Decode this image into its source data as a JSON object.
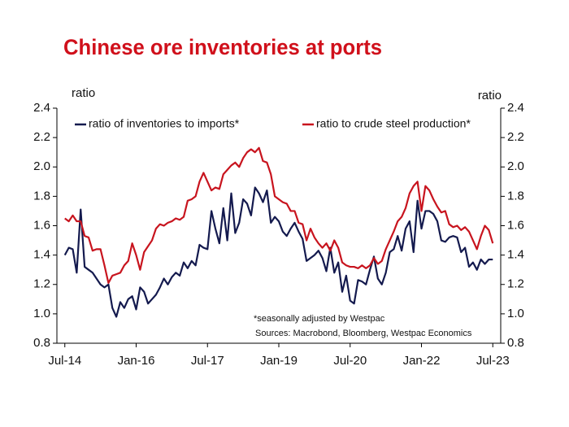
{
  "chart_data": {
    "type": "line",
    "title": "Chinese ore inventories at ports",
    "y_label": "ratio",
    "y2_label": "ratio",
    "annotations": [
      "*seasonally adjusted by Westpac",
      "Sources: Macrobond, Bloomberg, Westpac Economics"
    ],
    "legend": "top",
    "grid": false,
    "x": [
      "2014-07",
      "2014-08",
      "2014-09",
      "2014-10",
      "2014-11",
      "2014-12",
      "2015-01",
      "2015-02",
      "2015-03",
      "2015-04",
      "2015-05",
      "2015-06",
      "2015-07",
      "2015-08",
      "2015-09",
      "2015-10",
      "2015-11",
      "2015-12",
      "2016-01",
      "2016-02",
      "2016-03",
      "2016-04",
      "2016-05",
      "2016-06",
      "2016-07",
      "2016-08",
      "2016-09",
      "2016-10",
      "2016-11",
      "2016-12",
      "2017-01",
      "2017-02",
      "2017-03",
      "2017-04",
      "2017-05",
      "2017-06",
      "2017-07",
      "2017-08",
      "2017-09",
      "2017-10",
      "2017-11",
      "2017-12",
      "2018-01",
      "2018-02",
      "2018-03",
      "2018-04",
      "2018-05",
      "2018-06",
      "2018-07",
      "2018-08",
      "2018-09",
      "2018-10",
      "2018-11",
      "2018-12",
      "2019-01",
      "2019-02",
      "2019-03",
      "2019-04",
      "2019-05",
      "2019-06",
      "2019-07",
      "2019-08",
      "2019-09",
      "2019-10",
      "2019-11",
      "2019-12",
      "2020-01",
      "2020-02",
      "2020-03",
      "2020-04",
      "2020-05",
      "2020-06",
      "2020-07",
      "2020-08",
      "2020-09",
      "2020-10",
      "2020-11",
      "2020-12",
      "2021-01",
      "2021-02",
      "2021-03",
      "2021-04",
      "2021-05",
      "2021-06",
      "2021-07",
      "2021-08",
      "2021-09",
      "2021-10",
      "2021-11",
      "2021-12",
      "2022-01",
      "2022-02",
      "2022-03",
      "2022-04",
      "2022-05",
      "2022-06",
      "2022-07",
      "2022-08",
      "2022-09",
      "2022-10",
      "2022-11",
      "2022-12",
      "2023-01",
      "2023-02",
      "2023-03",
      "2023-04",
      "2023-05",
      "2023-06",
      "2023-07"
    ],
    "series": [
      {
        "name": "ratio of inventories to imports*",
        "color": "#141a4e",
        "values": [
          1.4,
          1.45,
          1.44,
          1.28,
          1.71,
          1.32,
          1.3,
          1.28,
          1.24,
          1.2,
          1.18,
          1.2,
          1.04,
          0.98,
          1.08,
          1.04,
          1.1,
          1.12,
          1.03,
          1.18,
          1.15,
          1.07,
          1.1,
          1.13,
          1.18,
          1.24,
          1.2,
          1.25,
          1.28,
          1.26,
          1.35,
          1.31,
          1.36,
          1.33,
          1.47,
          1.45,
          1.44,
          1.7,
          1.58,
          1.48,
          1.72,
          1.5,
          1.82,
          1.55,
          1.62,
          1.78,
          1.75,
          1.67,
          1.86,
          1.82,
          1.76,
          1.84,
          1.62,
          1.66,
          1.63,
          1.56,
          1.53,
          1.58,
          1.62,
          1.56,
          1.51,
          1.36,
          1.38,
          1.4,
          1.43,
          1.38,
          1.29,
          1.45,
          1.28,
          1.35,
          1.15,
          1.26,
          1.09,
          1.07,
          1.23,
          1.22,
          1.2,
          1.3,
          1.39,
          1.24,
          1.2,
          1.28,
          1.42,
          1.44,
          1.53,
          1.43,
          1.58,
          1.63,
          1.42,
          1.77,
          1.58,
          1.7,
          1.7,
          1.68,
          1.63,
          1.5,
          1.49,
          1.52,
          1.53,
          1.52,
          1.42,
          1.45,
          1.32,
          1.35,
          1.3,
          1.37,
          1.34,
          1.37,
          1.37
        ]
      },
      {
        "name": "ratio to crude steel production*",
        "color": "#c8141e",
        "values": [
          1.65,
          1.63,
          1.67,
          1.63,
          1.63,
          1.53,
          1.52,
          1.43,
          1.44,
          1.44,
          1.33,
          1.21,
          1.26,
          1.27,
          1.28,
          1.33,
          1.36,
          1.48,
          1.4,
          1.3,
          1.42,
          1.46,
          1.5,
          1.58,
          1.61,
          1.6,
          1.62,
          1.63,
          1.65,
          1.64,
          1.66,
          1.77,
          1.78,
          1.8,
          1.9,
          1.96,
          1.9,
          1.84,
          1.86,
          1.85,
          1.95,
          1.98,
          2.01,
          2.03,
          2.0,
          2.06,
          2.1,
          2.12,
          2.1,
          2.13,
          2.04,
          2.03,
          1.95,
          1.8,
          1.78,
          1.76,
          1.75,
          1.7,
          1.7,
          1.62,
          1.61,
          1.5,
          1.58,
          1.52,
          1.48,
          1.45,
          1.48,
          1.43,
          1.5,
          1.45,
          1.35,
          1.33,
          1.32,
          1.32,
          1.31,
          1.33,
          1.31,
          1.33,
          1.38,
          1.34,
          1.36,
          1.44,
          1.5,
          1.56,
          1.63,
          1.66,
          1.72,
          1.82,
          1.87,
          1.9,
          1.7,
          1.87,
          1.84,
          1.78,
          1.73,
          1.69,
          1.7,
          1.61,
          1.59,
          1.6,
          1.57,
          1.59,
          1.56,
          1.5,
          1.44,
          1.53,
          1.6,
          1.57,
          1.48
        ]
      }
    ],
    "xlim": [
      "2014-05",
      "2023-09"
    ],
    "xticks": [
      {
        "value": "2014-07",
        "label": "Jul-14"
      },
      {
        "value": "2016-01",
        "label": "Jan-16"
      },
      {
        "value": "2017-07",
        "label": "Jul-17"
      },
      {
        "value": "2019-01",
        "label": "Jan-19"
      },
      {
        "value": "2020-07",
        "label": "Jul-20"
      },
      {
        "value": "2022-01",
        "label": "Jan-22"
      },
      {
        "value": "2023-07",
        "label": "Jul-23"
      }
    ],
    "ylim": [
      0.8,
      2.4
    ],
    "yticks": [
      {
        "value": 0.8,
        "label": "0.8"
      },
      {
        "value": 1.0,
        "label": "1.0"
      },
      {
        "value": 1.2,
        "label": "1.2"
      },
      {
        "value": 1.4,
        "label": "1.4"
      },
      {
        "value": 1.6,
        "label": "1.6"
      },
      {
        "value": 1.8,
        "label": "1.8"
      },
      {
        "value": 2.0,
        "label": "2.0"
      },
      {
        "value": 2.2,
        "label": "2.2"
      },
      {
        "value": 2.4,
        "label": "2.4"
      }
    ],
    "y2lim": [
      0.8,
      2.4
    ],
    "y2ticks": [
      {
        "value": 0.8,
        "label": "0.8"
      },
      {
        "value": 1.0,
        "label": "1.0"
      },
      {
        "value": 1.2,
        "label": "1.2"
      },
      {
        "value": 1.4,
        "label": "1.4"
      },
      {
        "value": 1.6,
        "label": "1.6"
      },
      {
        "value": 1.8,
        "label": "1.8"
      },
      {
        "value": 2.0,
        "label": "2.0"
      },
      {
        "value": 2.2,
        "label": "2.2"
      },
      {
        "value": 2.4,
        "label": "2.4"
      }
    ]
  }
}
